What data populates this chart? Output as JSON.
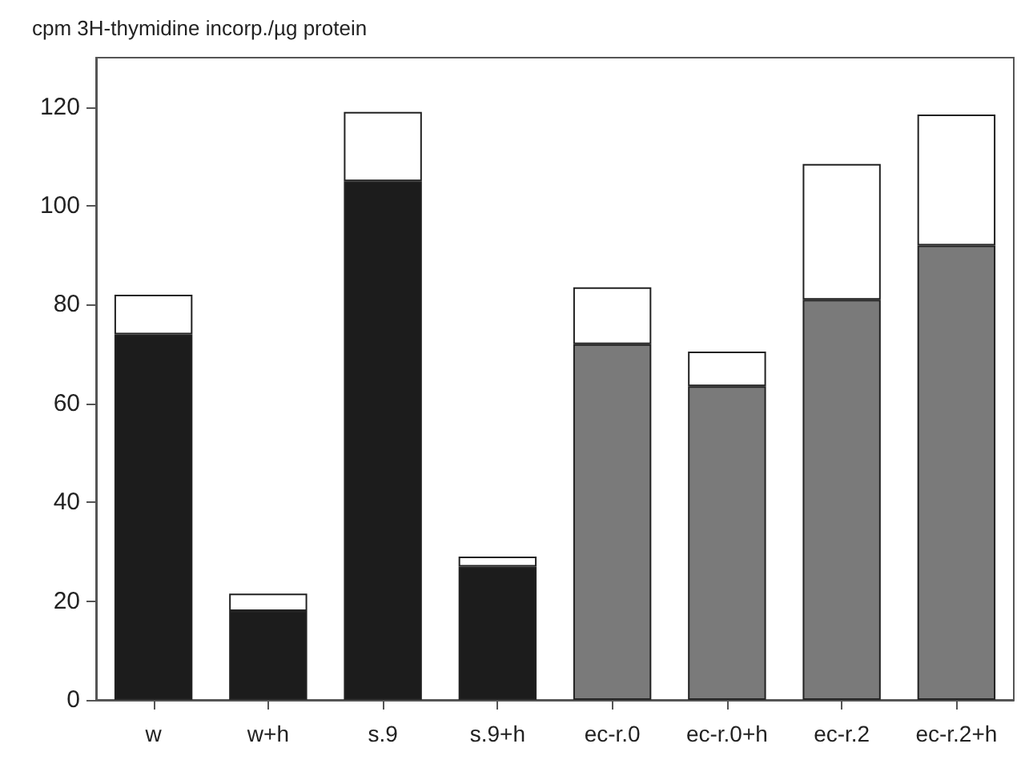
{
  "chart_data": {
    "type": "bar",
    "ylabel": "cpm 3H-thymidine incorp./µg protein",
    "categories": [
      "w",
      "w+h",
      "s.9",
      "s.9+h",
      "ec-r.0",
      "ec-r.0+h",
      "ec-r.2",
      "ec-r.2+h"
    ],
    "stacked": true,
    "series": [
      {
        "colors": [
          "#1c1c1c",
          "#1c1c1c",
          "#1c1c1c",
          "#1c1c1c",
          "#7a7a7a",
          "#7a7a7a",
          "#7a7a7a",
          "#7a7a7a"
        ],
        "values": [
          74,
          18,
          105,
          27,
          72,
          63.5,
          81,
          92
        ]
      },
      {
        "color": "#ffffff",
        "values": [
          8,
          3.5,
          14,
          2,
          11.5,
          7,
          27.5,
          26.5
        ]
      }
    ],
    "ylim": [
      0,
      130
    ],
    "yticks": [
      0,
      20,
      40,
      60,
      80,
      100,
      120
    ],
    "grid": false
  }
}
